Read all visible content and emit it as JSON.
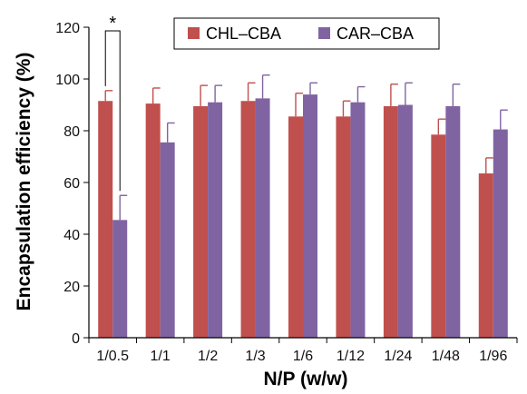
{
  "chart_data": {
    "type": "bar",
    "xlabel": "N/P (w/w)",
    "ylabel": "Encapsulation efficiency (%)",
    "ylim": [
      0,
      120
    ],
    "yticks": [
      0,
      20,
      40,
      60,
      80,
      100,
      120
    ],
    "categories": [
      "1/0.5",
      "1/1",
      "1/2",
      "1/3",
      "1/6",
      "1/12",
      "1/24",
      "1/48",
      "1/96"
    ],
    "series": [
      {
        "name": "CHL–CBA",
        "color": "#c0504d",
        "values": [
          91.5,
          90.5,
          89.5,
          91.5,
          85.5,
          85.5,
          89.5,
          78.5,
          63.5
        ],
        "errors": [
          4,
          6,
          8,
          7,
          9,
          6,
          8.5,
          6,
          6
        ]
      },
      {
        "name": "CAR–CBA",
        "color": "#8064a2",
        "values": [
          45.5,
          75.5,
          91,
          92.5,
          94,
          91,
          90,
          89.5,
          80.5
        ],
        "errors": [
          9.5,
          7.5,
          6.5,
          9,
          4.5,
          6,
          8.5,
          8.5,
          7.5
        ]
      }
    ],
    "legend": {
      "position": "top-right",
      "border": true
    },
    "grid": false,
    "annotations": [
      {
        "text": "*",
        "between": [
          "1/0.5 CHL–CBA",
          "1/0.5 CAR–CBA"
        ]
      }
    ]
  }
}
